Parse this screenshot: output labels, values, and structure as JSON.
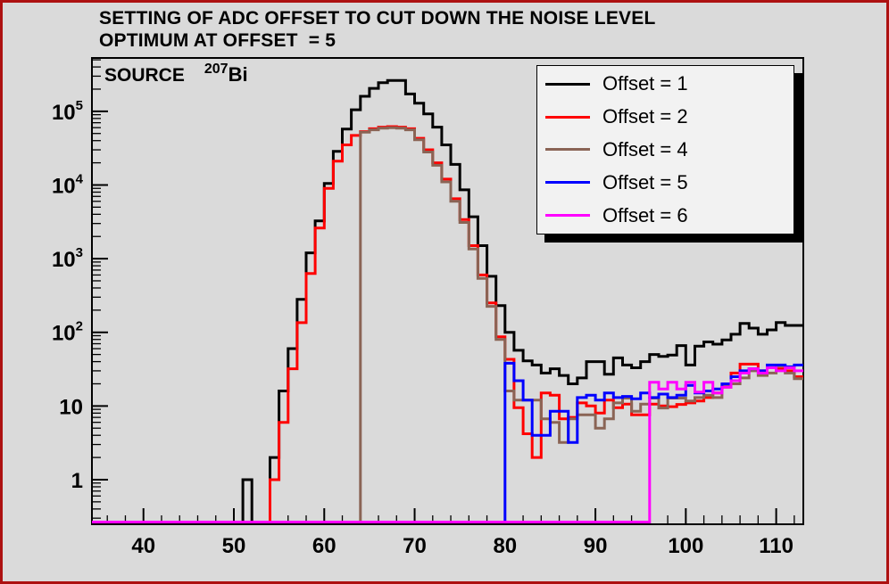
{
  "window": {
    "background_color": "#dadada",
    "border_color": "#ad1111",
    "legend_background": "#f2f2f2",
    "legend_shadow": "#000000"
  },
  "title": {
    "line1": "SETTING OF ADC OFFSET TO CUT DOWN THE NOISE LEVEL",
    "line2": "OPTIMUM AT OFFSET  = 5"
  },
  "source_label": {
    "prefix": "SOURCE",
    "isotope_mass": "207",
    "element": "Bi"
  },
  "legend": {
    "items": [
      {
        "label": "Offset = 1",
        "color": "#000000"
      },
      {
        "label": "Offset = 2",
        "color": "#ff0000"
      },
      {
        "label": "Offset = 4",
        "color": "#8a6455"
      },
      {
        "label": "Offset = 5",
        "color": "#0000ff"
      },
      {
        "label": "Offset = 6",
        "color": "#ff00ff"
      }
    ]
  },
  "chart_data": {
    "type": "step-histogram",
    "title": "SETTING OF ADC OFFSET TO CUT DOWN THE NOISE LEVEL — OPTIMUM AT OFFSET = 5",
    "xlabel": "",
    "ylabel": "",
    "bin_width": 1,
    "x_axis": {
      "min": 34.3,
      "max": 113,
      "major_ticks": [
        40,
        50,
        60,
        70,
        80,
        90,
        100,
        110
      ],
      "minor_tick_step": 2
    },
    "y_axis": {
      "scale": "log",
      "min": 0.248,
      "max": 530000,
      "ticks": [
        {
          "value": 1,
          "base": "1",
          "exp": ""
        },
        {
          "value": 10,
          "base": "10",
          "exp": ""
        },
        {
          "value": 100,
          "base": "10",
          "exp": "2"
        },
        {
          "value": 1000,
          "base": "10",
          "exp": "3"
        },
        {
          "value": 10000,
          "base": "10",
          "exp": "4"
        },
        {
          "value": 100000,
          "base": "10",
          "exp": "5"
        }
      ]
    },
    "series": [
      {
        "name": "Offset = 1",
        "color": "#000000",
        "first_bin": 35,
        "values": [
          0,
          0,
          0,
          0,
          0,
          0,
          0,
          0,
          0,
          0,
          0,
          0,
          0,
          0,
          0,
          0,
          1,
          0,
          0,
          2,
          16,
          60,
          280,
          1200,
          3250,
          10500,
          28600,
          57500,
          105000,
          160000,
          205000,
          245000,
          262000,
          262000,
          172000,
          129000,
          92000,
          61000,
          35000,
          19000,
          8600,
          3700,
          1500,
          575,
          230,
          100,
          57,
          41,
          36,
          28,
          32,
          26,
          20,
          24,
          40,
          40,
          27,
          45,
          36,
          33,
          40,
          50,
          47,
          49,
          66,
          36,
          65,
          74,
          69,
          79,
          94,
          132,
          114,
          94,
          108,
          136,
          124,
          124
        ]
      },
      {
        "name": "Offset = 2",
        "color": "#ff0000",
        "first_bin": 54,
        "values": [
          1,
          6,
          32,
          135,
          630,
          2600,
          9000,
          21000,
          35000,
          47000,
          53000,
          58000,
          61000,
          62000,
          61000,
          58000,
          43000,
          30000,
          20000,
          12000,
          6500,
          3400,
          1500,
          600,
          250,
          87,
          43,
          9.5,
          4.2,
          2,
          15,
          14,
          6.7,
          7,
          11,
          10,
          8,
          12,
          9.5,
          10.6,
          7.6,
          7.6,
          10.6,
          10,
          9.8,
          10.5,
          11,
          11.7,
          13,
          15,
          18,
          28,
          37,
          37,
          30,
          33,
          32,
          30,
          25
        ]
      },
      {
        "name": "Offset = 4",
        "color": "#8a6455",
        "first_bin": 64,
        "values": [
          52000,
          56000,
          59000,
          60000,
          59000,
          56000,
          41000,
          28000,
          18500,
          11000,
          6000,
          3100,
          1350,
          540,
          225,
          80,
          16,
          12,
          12,
          12,
          6.7,
          6,
          3.2,
          6.7,
          7.6,
          7.6,
          5,
          6.7,
          11,
          12.8,
          8.5,
          10.6,
          12.8,
          9.4,
          12.8,
          12.8,
          11.7,
          13,
          14,
          13,
          18.7,
          20,
          24,
          30,
          26,
          28,
          35,
          28,
          23.4
        ]
      },
      {
        "name": "Offset = 5",
        "color": "#0000ff",
        "first_bin": 80,
        "values": [
          38,
          22,
          12,
          4,
          4,
          8.5,
          8.5,
          3.2,
          13,
          14,
          12,
          15,
          13,
          13.5,
          12.5,
          15,
          13,
          14.5,
          13,
          14,
          19,
          15,
          16,
          17,
          20,
          25,
          30,
          32,
          30,
          36,
          36,
          34,
          36
        ]
      },
      {
        "name": "Offset = 6",
        "color": "#ff00ff",
        "first_bin": 96,
        "values": [
          21,
          17,
          21,
          17,
          21,
          15.4,
          21,
          15,
          18,
          22,
          28,
          32,
          28,
          33,
          30,
          33,
          30
        ]
      }
    ]
  }
}
